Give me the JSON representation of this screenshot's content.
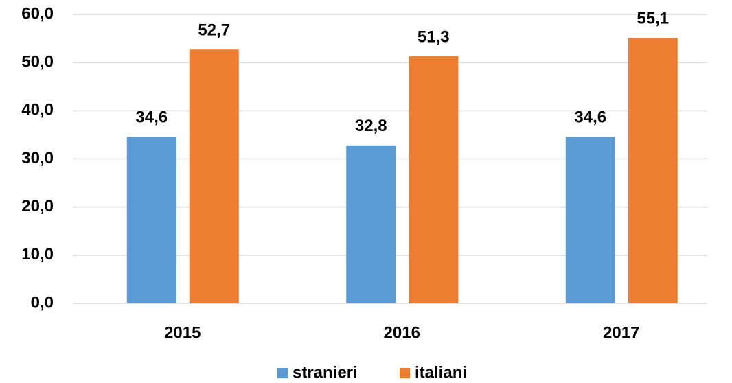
{
  "chart_data": {
    "type": "bar",
    "categories": [
      "2015",
      "2016",
      "2017"
    ],
    "series": [
      {
        "name": "stranieri",
        "color": "#5b9bd5",
        "values": [
          34.6,
          32.8,
          34.6
        ],
        "value_labels": [
          "34,6",
          "32,8",
          "34,6"
        ]
      },
      {
        "name": "italiani",
        "color": "#ed7d31",
        "values": [
          52.7,
          51.3,
          55.1
        ],
        "value_labels": [
          "52,7",
          "51,3",
          "55,1"
        ]
      }
    ],
    "ylim": [
      0,
      60
    ],
    "yticks": [
      {
        "value": 0,
        "label": "0,0"
      },
      {
        "value": 10,
        "label": "10,0"
      },
      {
        "value": 20,
        "label": "20,0"
      },
      {
        "value": 30,
        "label": "30,0"
      },
      {
        "value": 40,
        "label": "40,0"
      },
      {
        "value": 50,
        "label": "50,0"
      },
      {
        "value": 60,
        "label": "60,0"
      }
    ],
    "grid": true,
    "legend": "bottom"
  }
}
